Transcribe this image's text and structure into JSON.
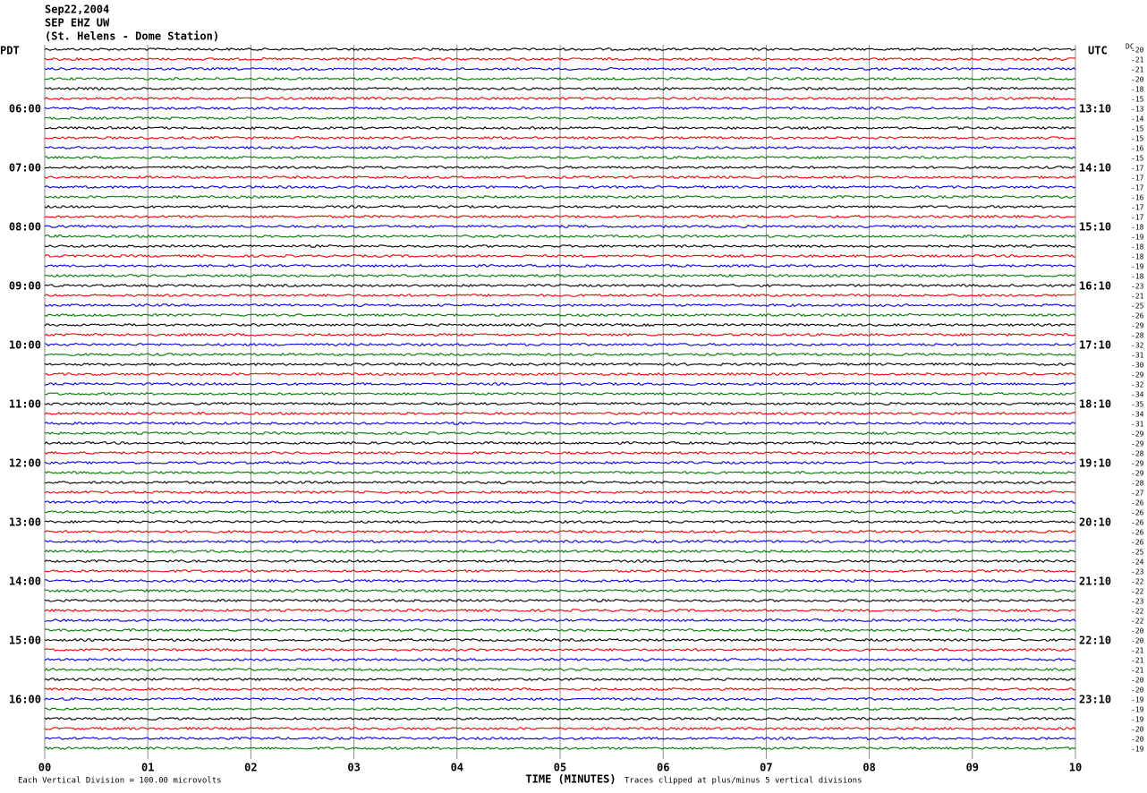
{
  "header": [
    "Sep22,2004",
    "SEP EHZ UW",
    "(St. Helens - Dome Station)"
  ],
  "left_label": "PDT",
  "right_label": "UTC",
  "pdt_times": [
    "06:00",
    "07:00",
    "08:00",
    "09:00",
    "10:00",
    "11:00",
    "12:00",
    "13:00",
    "14:00",
    "15:00",
    "16:00"
  ],
  "utc_times": [
    "13:10",
    "14:10",
    "15:10",
    "16:10",
    "17:10",
    "18:10",
    "19:10",
    "20:10",
    "21:10",
    "22:10",
    "23:10"
  ],
  "dc_header": "DC",
  "dc_offsets": [
    "-20",
    "-21",
    "-21",
    "-20",
    "-18",
    "-15",
    "-13",
    "-14",
    "-15",
    "-15",
    "-16",
    "-15",
    "-17",
    "-17",
    "-17",
    "-16",
    "-17",
    "-17",
    "-18",
    "-19",
    "-18",
    "-18",
    "-19",
    "-18",
    "-23",
    "-21",
    "-25",
    "-26",
    "-29",
    "-28",
    "-32",
    "-31",
    "-30",
    "-29",
    "-32",
    "-34",
    "-35",
    "-34",
    "-31",
    "-29",
    "-29",
    "-28",
    "-29",
    "-29",
    "-28",
    "-27",
    "-26",
    "-26",
    "-26",
    "-26",
    "-26",
    "-25",
    "-24",
    "-23",
    "-22",
    "-22",
    "-23",
    "-22",
    "-22",
    "-20",
    "-20",
    "-21",
    "-21",
    "-21",
    "-20",
    "-20",
    "-19",
    "-19",
    "-19",
    "-20",
    "-20",
    "-19"
  ],
  "x_labels": [
    "00",
    "01",
    "02",
    "03",
    "04",
    "05",
    "06",
    "07",
    "08",
    "09",
    "10"
  ],
  "x_axis_title": "TIME (MINUTES)",
  "footer_left": "Each Vertical Division =  100.00 microvolts",
  "footer_right": "Traces clipped at plus/minus 5 vertical divisions"
}
